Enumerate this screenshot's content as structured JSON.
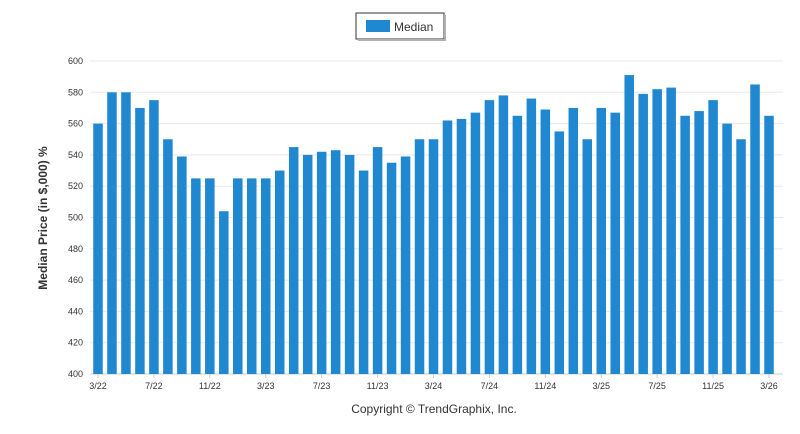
{
  "colors": {
    "bar": "#1f88d0",
    "grid": "#e8e8e8",
    "axis": "#cccccc",
    "text": "#333333"
  },
  "legend": {
    "label": "Median"
  },
  "footer": {
    "copyright": "Copyright © TrendGraphix, Inc."
  },
  "chart_data": {
    "type": "bar",
    "title": "",
    "xlabel": "",
    "ylabel": "Median Price (in $,000) %",
    "ylim": [
      400,
      600
    ],
    "yticks": [
      400,
      420,
      440,
      460,
      480,
      500,
      520,
      540,
      560,
      580,
      600
    ],
    "grid": true,
    "legend_position": "top-center",
    "categories": [
      "3/22",
      "4/22",
      "5/22",
      "6/22",
      "7/22",
      "8/22",
      "9/22",
      "10/22",
      "11/22",
      "12/22",
      "1/23",
      "2/23",
      "3/23",
      "4/23",
      "5/23",
      "6/23",
      "7/23",
      "8/23",
      "9/23",
      "10/23",
      "11/23",
      "12/23",
      "1/24",
      "2/24",
      "3/24",
      "4/24",
      "5/24",
      "6/24",
      "7/24",
      "8/24",
      "9/24",
      "10/24",
      "11/24",
      "12/24",
      "1/25",
      "2/25",
      "3/25",
      "4/25",
      "5/25",
      "6/25",
      "7/25",
      "8/25",
      "9/25",
      "10/25",
      "11/25",
      "12/25",
      "1/26",
      "2/26",
      "3/26"
    ],
    "xtick_labels": [
      "3/22",
      "7/22",
      "11/22",
      "3/23",
      "7/23",
      "11/23",
      "3/24",
      "7/24",
      "11/24",
      "3/25",
      "7/25",
      "11/25",
      "3/26"
    ],
    "series": [
      {
        "name": "Median",
        "values": [
          560,
          580,
          580,
          570,
          575,
          550,
          539,
          525,
          525,
          504,
          525,
          525,
          525,
          530,
          545,
          540,
          542,
          543,
          540,
          530,
          545,
          535,
          539,
          550,
          550,
          562,
          563,
          567,
          575,
          578,
          565,
          576,
          569,
          555,
          570,
          550,
          570,
          567,
          591,
          579,
          582,
          583,
          565,
          568,
          575,
          560,
          550,
          585,
          565
        ]
      }
    ]
  }
}
